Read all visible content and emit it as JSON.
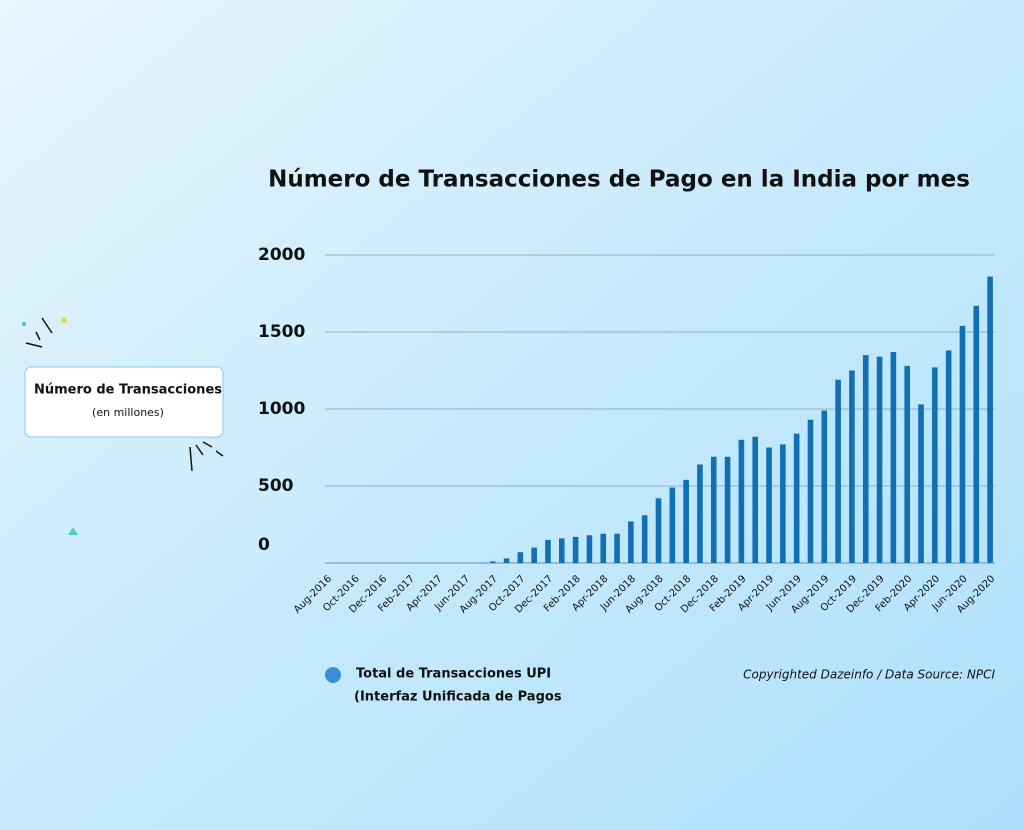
{
  "chart_data": {
    "type": "bar",
    "title": "Número de Transacciones de Pago en la India por mes",
    "y_label": "Número de Transacciones",
    "y_label_note": "(en millones)",
    "source": "Copyrighted Dazeinfo / Data Source: NPCI",
    "categories": [
      "Aug-2016",
      null,
      "Oct-2016",
      null,
      "Dec-2016",
      null,
      "Feb-2017",
      null,
      "Apr-2017",
      null,
      "Jun-2017",
      null,
      "Aug-2017",
      null,
      "Oct-2017",
      null,
      "Dec-2017",
      null,
      "Feb-2018",
      null,
      "Apr-2018",
      null,
      "Jun-2018",
      null,
      "Aug-2018",
      null,
      "Oct-2018",
      null,
      "Dec-2018",
      null,
      "Feb-2019",
      null,
      "Apr-2019",
      null,
      "Jun-2019",
      null,
      "Aug-2019",
      null,
      "Oct-2019",
      null,
      "Dec-2019",
      null,
      "Feb-2020",
      null,
      "Apr-2020",
      null,
      "Jun-2020",
      null,
      "Aug-2020"
    ],
    "series": [
      {
        "name": "Total de Transacciones UPI",
        "name_note": "(Interfaz Unificada de Pagos",
        "color": "#1170b4",
        "values": [
          0,
          0,
          0,
          0,
          0,
          0,
          0,
          0,
          0,
          0,
          0,
          0,
          10,
          30,
          70,
          100,
          150,
          160,
          170,
          180,
          190,
          190,
          270,
          310,
          420,
          490,
          540,
          640,
          690,
          690,
          800,
          820,
          750,
          770,
          840,
          930,
          990,
          1190,
          1250,
          1350,
          1340,
          1370,
          1280,
          1030,
          1270,
          1380,
          1540,
          1670,
          1860
        ]
      }
    ],
    "ylim": [
      0,
      2000
    ],
    "yticks": [
      0,
      500,
      1000,
      1500,
      2000
    ],
    "grid": true
  }
}
